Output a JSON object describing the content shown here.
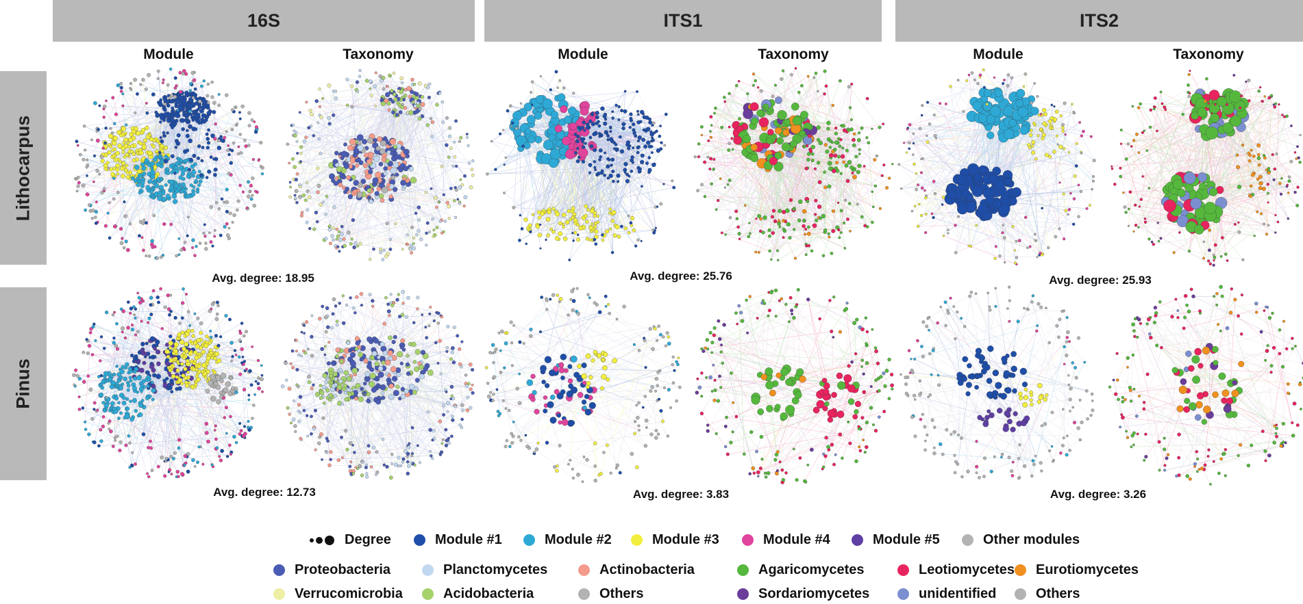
{
  "columns": [
    {
      "label": "16S"
    },
    {
      "label": "ITS1"
    },
    {
      "label": "ITS2"
    }
  ],
  "rows": [
    {
      "label": "Lithocarpus"
    },
    {
      "label": "Pinus"
    }
  ],
  "subheaders": {
    "module": "Module",
    "taxonomy": "Taxonomy"
  },
  "avg_degrees": {
    "lithocarpus_16s": "Avg. degree: 18.95",
    "lithocarpus_its1": "Avg. degree: 25.76",
    "lithocarpus_its2": "Avg. degree: 25.93",
    "pinus_16s": "Avg. degree: 12.73",
    "pinus_its1": "Avg. degree: 3.83",
    "pinus_its2": "Avg. degree: 3.26"
  },
  "legend": {
    "degree": "Degree",
    "modules": [
      {
        "label": "Module  #1",
        "color": "#1f4ea8"
      },
      {
        "label": "Module  #2",
        "color": "#2ea9d6"
      },
      {
        "label": "Module  #3",
        "color": "#f2ee3e"
      },
      {
        "label": "Module  #4",
        "color": "#e0449c"
      },
      {
        "label": "Module #5",
        "color": "#5e3fa2"
      },
      {
        "label": "Other modules",
        "color": "#b3b3b3"
      }
    ],
    "bacteria": [
      {
        "label": "Proteobacteria",
        "color": "#4a5cb4"
      },
      {
        "label": "Planctomycetes",
        "color": "#c2d8f0"
      },
      {
        "label": "Actinobacteria",
        "color": "#f59b8c"
      },
      {
        "label": "Verrucomicrobia",
        "color": "#eeeea4"
      },
      {
        "label": "Acidobacteria",
        "color": "#a6d26c"
      },
      {
        "label": "Others",
        "color": "#b3b3b3"
      }
    ],
    "fungi": [
      {
        "label": "Agaricomycetes",
        "color": "#55b83d"
      },
      {
        "label": "Leotiomycetes",
        "color": "#e8245f"
      },
      {
        "label": "Eurotiomycetes",
        "color": "#f0901e"
      },
      {
        "label": "Sordariomycetes",
        "color": "#6a3d9a"
      },
      {
        "label": "unidentified",
        "color": "#7b8fd0"
      },
      {
        "label": "Others",
        "color": "#b3b3b3"
      }
    ]
  }
}
